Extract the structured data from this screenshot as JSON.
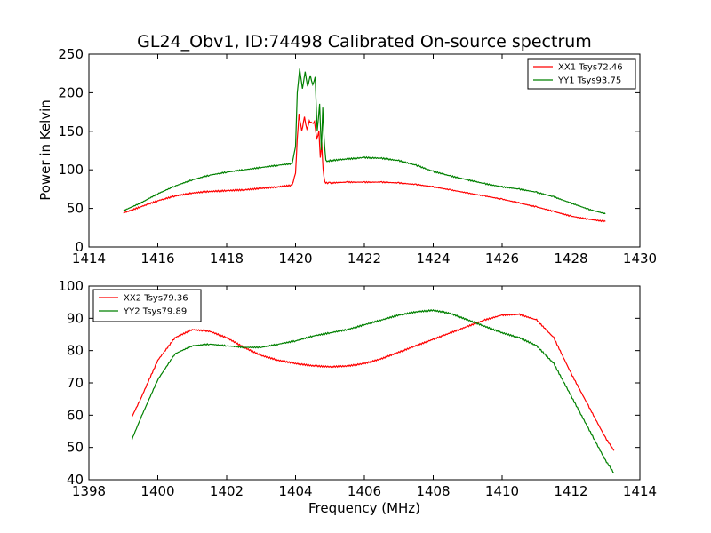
{
  "chart_data": [
    {
      "type": "line",
      "title": "GL24_Obv1, ID:74498 Calibrated On-source spectrum",
      "xlabel": "",
      "ylabel": "Power in Kelvin",
      "xlim": [
        1414,
        1430
      ],
      "ylim": [
        0,
        250
      ],
      "xticks": [
        1414,
        1416,
        1418,
        1420,
        1422,
        1424,
        1426,
        1428,
        1430
      ],
      "yticks": [
        0,
        50,
        100,
        150,
        200,
        250
      ],
      "grid": false,
      "legend_position": "top-right",
      "series": [
        {
          "name": "XX1 Tsys72.46",
          "color": "#ff0000",
          "x": [
            1415.0,
            1415.5,
            1416.0,
            1416.5,
            1417.0,
            1417.5,
            1418.0,
            1418.5,
            1419.0,
            1419.5,
            1419.9,
            1420.0,
            1420.05,
            1420.1,
            1420.18,
            1420.26,
            1420.33,
            1420.4,
            1420.48,
            1420.55,
            1420.62,
            1420.68,
            1420.72,
            1420.76,
            1420.8,
            1420.85,
            1420.9,
            1421.0,
            1421.5,
            1422.0,
            1422.5,
            1423.0,
            1423.5,
            1424.0,
            1424.5,
            1425.0,
            1425.5,
            1426.0,
            1426.5,
            1427.0,
            1427.5,
            1428.0,
            1428.5,
            1429.0
          ],
          "y": [
            44,
            52,
            60,
            66,
            70,
            72,
            73,
            74,
            76,
            78,
            80,
            95,
            140,
            172,
            150,
            168,
            152,
            163,
            160,
            162,
            140,
            150,
            115,
            135,
            100,
            84,
            83,
            83,
            84,
            84,
            84,
            83,
            81,
            78,
            74,
            70,
            66,
            62,
            57,
            52,
            46,
            40,
            36,
            33
          ]
        },
        {
          "name": "YY1 Tsys93.75",
          "color": "#008000",
          "x": [
            1415.0,
            1415.5,
            1416.0,
            1416.5,
            1417.0,
            1417.5,
            1418.0,
            1418.5,
            1419.0,
            1419.5,
            1419.9,
            1420.0,
            1420.05,
            1420.12,
            1420.2,
            1420.28,
            1420.35,
            1420.43,
            1420.5,
            1420.57,
            1420.63,
            1420.7,
            1420.75,
            1420.79,
            1420.83,
            1420.88,
            1420.95,
            1421.0,
            1421.5,
            1422.0,
            1422.5,
            1423.0,
            1423.5,
            1424.0,
            1424.5,
            1425.0,
            1425.5,
            1426.0,
            1426.5,
            1427.0,
            1427.5,
            1428.0,
            1428.5,
            1429.0
          ],
          "y": [
            47,
            57,
            69,
            79,
            87,
            93,
            97,
            100,
            103,
            106,
            108,
            130,
            200,
            231,
            205,
            227,
            208,
            222,
            210,
            220,
            150,
            185,
            125,
            180,
            140,
            112,
            111,
            112,
            114,
            116,
            115,
            112,
            106,
            98,
            92,
            87,
            82,
            78,
            75,
            71,
            65,
            57,
            49,
            43
          ]
        }
      ]
    },
    {
      "type": "line",
      "title": "",
      "xlabel": "Frequency (MHz)",
      "ylabel": "",
      "xlim": [
        1398,
        1414
      ],
      "ylim": [
        40,
        100
      ],
      "xticks": [
        1398,
        1400,
        1402,
        1404,
        1406,
        1408,
        1410,
        1412,
        1414
      ],
      "yticks": [
        40,
        50,
        60,
        70,
        80,
        90,
        100
      ],
      "grid": false,
      "legend_position": "top-left",
      "series": [
        {
          "name": "XX2 Tsys79.36",
          "color": "#ff0000",
          "x": [
            1399.25,
            1399.5,
            1400.0,
            1400.5,
            1401.0,
            1401.5,
            1402.0,
            1402.5,
            1403.0,
            1403.5,
            1404.0,
            1404.5,
            1405.0,
            1405.5,
            1406.0,
            1406.5,
            1407.0,
            1407.5,
            1408.0,
            1408.5,
            1409.0,
            1409.5,
            1410.0,
            1410.5,
            1411.0,
            1411.5,
            1412.0,
            1412.5,
            1413.0,
            1413.25
          ],
          "y": [
            59.5,
            65,
            77,
            84,
            86.5,
            86,
            84,
            81,
            78.5,
            77,
            76,
            75.3,
            75,
            75.2,
            76,
            77.5,
            79.5,
            81.5,
            83.5,
            85.5,
            87.5,
            89.5,
            91,
            91.2,
            89.5,
            84,
            73,
            63,
            53,
            49
          ]
        },
        {
          "name": "YY2 Tsys79.89",
          "color": "#008000",
          "x": [
            1399.25,
            1399.5,
            1400.0,
            1400.5,
            1401.0,
            1401.5,
            1402.0,
            1402.5,
            1403.0,
            1403.5,
            1404.0,
            1404.5,
            1405.0,
            1405.5,
            1406.0,
            1406.5,
            1407.0,
            1407.5,
            1408.0,
            1408.5,
            1409.0,
            1409.5,
            1410.0,
            1410.5,
            1411.0,
            1411.5,
            1412.0,
            1412.5,
            1413.0,
            1413.25
          ],
          "y": [
            52.5,
            59,
            71,
            79,
            81.5,
            82,
            81.5,
            81,
            81,
            82,
            83,
            84.5,
            85.5,
            86.5,
            88,
            89.5,
            91,
            92,
            92.5,
            91.5,
            89.5,
            87.5,
            85.5,
            84,
            81.5,
            76,
            66,
            56,
            46,
            42
          ]
        }
      ]
    }
  ]
}
